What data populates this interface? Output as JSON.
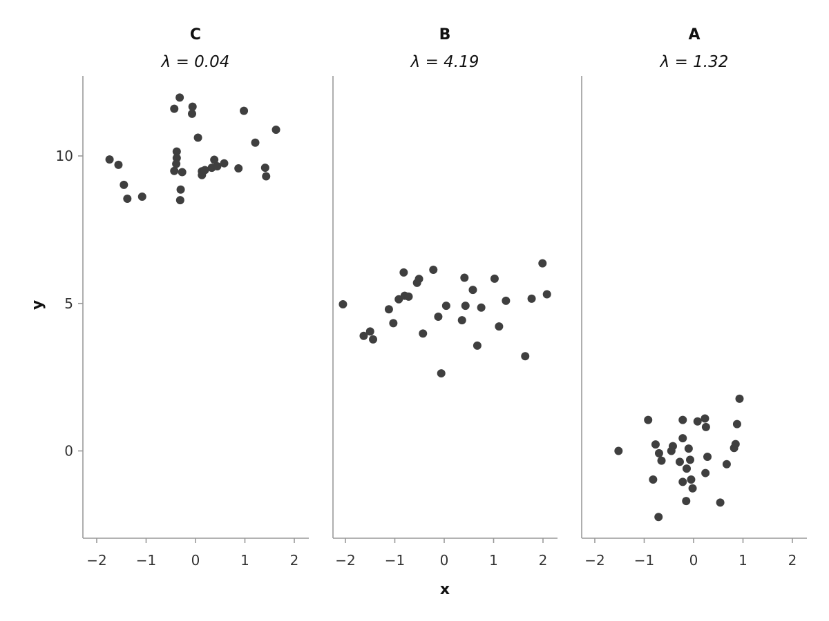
{
  "chart_data": {
    "type": "scatter",
    "xlabel": "x",
    "ylabel": "y",
    "xlim": [
      -2.3,
      2.3
    ],
    "ylim": [
      -2.95,
      12.7
    ],
    "xticks": [
      -2,
      -1,
      0,
      1,
      2
    ],
    "xtick_labels": [
      "−2",
      "−1",
      "0",
      "1",
      "2"
    ],
    "yticks": [
      0,
      5,
      10
    ],
    "ytick_labels": [
      "0",
      "5",
      "10"
    ],
    "grid": false,
    "point_color": "#3f3f3f",
    "facets": [
      {
        "title": "C",
        "subtitle": "λ = 0.04",
        "points": [
          {
            "x": -1.74,
            "y": 9.88
          },
          {
            "x": -1.56,
            "y": 9.7
          },
          {
            "x": -1.45,
            "y": 9.02
          },
          {
            "x": -1.38,
            "y": 8.55
          },
          {
            "x": -1.08,
            "y": 8.62
          },
          {
            "x": -0.43,
            "y": 11.6
          },
          {
            "x": -0.32,
            "y": 11.98
          },
          {
            "x": -0.06,
            "y": 11.67
          },
          {
            "x": -0.07,
            "y": 11.43
          },
          {
            "x": -0.38,
            "y": 10.15
          },
          {
            "x": -0.38,
            "y": 9.93
          },
          {
            "x": -0.39,
            "y": 9.73
          },
          {
            "x": -0.43,
            "y": 9.49
          },
          {
            "x": -0.27,
            "y": 9.45
          },
          {
            "x": -0.3,
            "y": 8.86
          },
          {
            "x": -0.31,
            "y": 8.5
          },
          {
            "x": 0.05,
            "y": 10.62
          },
          {
            "x": 0.13,
            "y": 9.48
          },
          {
            "x": 0.13,
            "y": 9.35
          },
          {
            "x": 0.19,
            "y": 9.52
          },
          {
            "x": 0.33,
            "y": 9.6
          },
          {
            "x": 0.38,
            "y": 9.87
          },
          {
            "x": 0.44,
            "y": 9.65
          },
          {
            "x": 0.58,
            "y": 9.75
          },
          {
            "x": 0.87,
            "y": 9.58
          },
          {
            "x": 0.98,
            "y": 11.53
          },
          {
            "x": 1.21,
            "y": 10.45
          },
          {
            "x": 1.41,
            "y": 9.6
          },
          {
            "x": 1.43,
            "y": 9.31
          },
          {
            "x": 1.63,
            "y": 10.89
          }
        ]
      },
      {
        "title": "B",
        "subtitle": "λ = 4.19",
        "points": [
          {
            "x": -2.05,
            "y": 4.97
          },
          {
            "x": -1.63,
            "y": 3.9
          },
          {
            "x": -1.5,
            "y": 4.05
          },
          {
            "x": -1.44,
            "y": 3.78
          },
          {
            "x": -1.12,
            "y": 4.8
          },
          {
            "x": -1.03,
            "y": 4.33
          },
          {
            "x": -0.92,
            "y": 5.14
          },
          {
            "x": -0.82,
            "y": 6.05
          },
          {
            "x": -0.8,
            "y": 5.26
          },
          {
            "x": -0.72,
            "y": 5.23
          },
          {
            "x": -0.55,
            "y": 5.7
          },
          {
            "x": -0.51,
            "y": 5.83
          },
          {
            "x": -0.43,
            "y": 3.98
          },
          {
            "x": -0.22,
            "y": 6.14
          },
          {
            "x": -0.12,
            "y": 4.55
          },
          {
            "x": -0.06,
            "y": 2.63
          },
          {
            "x": 0.04,
            "y": 4.92
          },
          {
            "x": 0.36,
            "y": 4.43
          },
          {
            "x": 0.41,
            "y": 5.87
          },
          {
            "x": 0.43,
            "y": 4.92
          },
          {
            "x": 0.58,
            "y": 5.46
          },
          {
            "x": 0.67,
            "y": 3.57
          },
          {
            "x": 0.75,
            "y": 4.86
          },
          {
            "x": 1.02,
            "y": 5.84
          },
          {
            "x": 1.11,
            "y": 4.22
          },
          {
            "x": 1.25,
            "y": 5.09
          },
          {
            "x": 1.64,
            "y": 3.21
          },
          {
            "x": 1.77,
            "y": 5.16
          },
          {
            "x": 1.99,
            "y": 6.36
          },
          {
            "x": 2.08,
            "y": 5.31
          }
        ]
      },
      {
        "title": "A",
        "subtitle": "λ = 1.32",
        "points": [
          {
            "x": -1.52,
            "y": 0.0
          },
          {
            "x": -0.92,
            "y": 1.05
          },
          {
            "x": -0.82,
            "y": -0.97
          },
          {
            "x": -0.77,
            "y": 0.22
          },
          {
            "x": -0.7,
            "y": -0.08
          },
          {
            "x": -0.65,
            "y": -0.33
          },
          {
            "x": -0.71,
            "y": -2.24
          },
          {
            "x": -0.45,
            "y": 0.0
          },
          {
            "x": -0.42,
            "y": 0.16
          },
          {
            "x": -0.28,
            "y": -0.37
          },
          {
            "x": -0.22,
            "y": 1.05
          },
          {
            "x": -0.22,
            "y": 0.43
          },
          {
            "x": -0.22,
            "y": -1.05
          },
          {
            "x": -0.14,
            "y": -0.6
          },
          {
            "x": -0.15,
            "y": -1.7
          },
          {
            "x": -0.1,
            "y": 0.08
          },
          {
            "x": -0.07,
            "y": -0.3
          },
          {
            "x": -0.05,
            "y": -0.97
          },
          {
            "x": -0.02,
            "y": -1.27
          },
          {
            "x": 0.08,
            "y": 1.0
          },
          {
            "x": 0.23,
            "y": 1.1
          },
          {
            "x": 0.25,
            "y": 0.81
          },
          {
            "x": 0.24,
            "y": -0.75
          },
          {
            "x": 0.28,
            "y": -0.2
          },
          {
            "x": 0.54,
            "y": -1.75
          },
          {
            "x": 0.67,
            "y": -0.45
          },
          {
            "x": 0.82,
            "y": 0.1
          },
          {
            "x": 0.85,
            "y": 0.23
          },
          {
            "x": 0.88,
            "y": 0.91
          },
          {
            "x": 0.93,
            "y": 1.77
          }
        ]
      }
    ]
  }
}
